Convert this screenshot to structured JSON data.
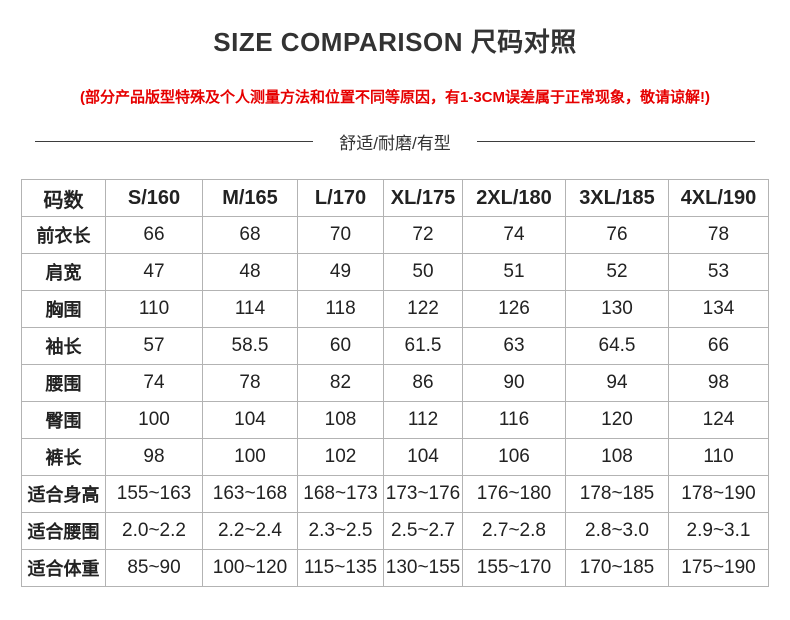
{
  "page": {
    "title": "SIZE COMPARISON 尺码对照",
    "note": "(部分产品版型特殊及个人测量方法和位置不同等原因，有1-3CM误差属于正常现象，敬请谅解!)",
    "divider_text": "舒适/耐磨/有型"
  },
  "colors": {
    "note_red": "#e60000",
    "text_dark": "#333333",
    "table_border": "#b3b3b3"
  },
  "chart_data": {
    "type": "table",
    "title": "SIZE COMPARISON 尺码对照",
    "header": [
      "码数",
      "S/160",
      "M/165",
      "L/170",
      "XL/175",
      "2XL/180",
      "3XL/185",
      "4XL/190"
    ],
    "rows": [
      {
        "label": "前衣长",
        "values": [
          "66",
          "68",
          "70",
          "72",
          "74",
          "76",
          "78"
        ]
      },
      {
        "label": "肩宽",
        "values": [
          "47",
          "48",
          "49",
          "50",
          "51",
          "52",
          "53"
        ]
      },
      {
        "label": "胸围",
        "values": [
          "110",
          "114",
          "118",
          "122",
          "126",
          "130",
          "134"
        ]
      },
      {
        "label": "袖长",
        "values": [
          "57",
          "58.5",
          "60",
          "61.5",
          "63",
          "64.5",
          "66"
        ]
      },
      {
        "label": "腰围",
        "values": [
          "74",
          "78",
          "82",
          "86",
          "90",
          "94",
          "98"
        ]
      },
      {
        "label": "臀围",
        "values": [
          "100",
          "104",
          "108",
          "112",
          "116",
          "120",
          "124"
        ]
      },
      {
        "label": "裤长",
        "values": [
          "98",
          "100",
          "102",
          "104",
          "106",
          "108",
          "110"
        ]
      },
      {
        "label": "适合身高",
        "values": [
          "155~163",
          "163~168",
          "168~173",
          "173~176",
          "176~180",
          "178~185",
          "178~190"
        ]
      },
      {
        "label": "适合腰围",
        "values": [
          "2.0~2.2",
          "2.2~2.4",
          "2.3~2.5",
          "2.5~2.7",
          "2.7~2.8",
          "2.8~3.0",
          "2.9~3.1"
        ]
      },
      {
        "label": "适合体重",
        "values": [
          "85~90",
          "100~120",
          "115~135",
          "130~155",
          "155~170",
          "170~185",
          "175~190"
        ]
      }
    ]
  }
}
